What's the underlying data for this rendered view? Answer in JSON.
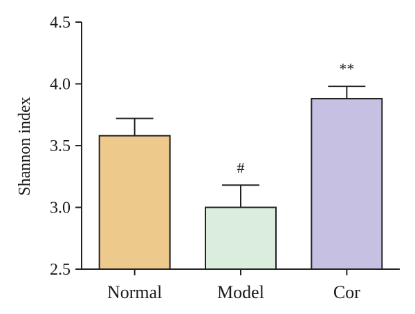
{
  "chart_data": {
    "type": "bar",
    "categories": [
      "Normal",
      "Model",
      "Cor"
    ],
    "values": [
      3.58,
      3.0,
      3.88
    ],
    "errors": [
      0.14,
      0.18,
      0.1
    ],
    "annotations": [
      "",
      "#",
      "**"
    ],
    "colors": [
      "#eec98c",
      "#dbeedd",
      "#c6c1e2"
    ],
    "ylabel": "Shannon index",
    "ylim": [
      2.5,
      4.5
    ],
    "yticks": [
      2.5,
      3.0,
      3.5,
      4.0,
      4.5
    ],
    "ytick_labels": [
      "2.5",
      "3.0",
      "3.5",
      "4.0",
      "4.5"
    ],
    "grid": false
  }
}
